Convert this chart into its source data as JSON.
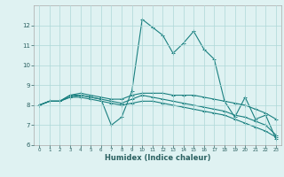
{
  "title": "",
  "xlabel": "Humidex (Indice chaleur)",
  "ylabel": "",
  "bg_color": "#dff2f2",
  "line_color": "#1a8080",
  "grid_color": "#aed8d8",
  "xlim": [
    -0.5,
    23.5
  ],
  "ylim": [
    6,
    13
  ],
  "yticks": [
    6,
    7,
    8,
    9,
    10,
    11,
    12
  ],
  "xticks": [
    0,
    1,
    2,
    3,
    4,
    5,
    6,
    7,
    8,
    9,
    10,
    11,
    12,
    13,
    14,
    15,
    16,
    17,
    18,
    19,
    20,
    21,
    22,
    23
  ],
  "lines": [
    {
      "x": [
        0,
        1,
        2,
        3,
        4,
        5,
        6,
        7,
        8,
        9,
        10,
        11,
        12,
        13,
        14,
        15,
        16,
        17,
        18,
        19,
        20,
        21,
        22,
        23
      ],
      "y": [
        8.0,
        8.2,
        8.2,
        8.5,
        8.5,
        8.4,
        8.3,
        7.0,
        7.4,
        8.7,
        12.3,
        11.9,
        11.5,
        10.6,
        11.1,
        11.7,
        10.8,
        10.3,
        8.2,
        7.4,
        8.4,
        7.3,
        7.5,
        6.3
      ]
    },
    {
      "x": [
        0,
        1,
        2,
        3,
        4,
        5,
        6,
        7,
        8,
        9,
        10,
        11,
        12,
        13,
        14,
        15,
        16,
        17,
        18,
        19,
        20,
        21,
        22,
        23
      ],
      "y": [
        8.0,
        8.2,
        8.2,
        8.5,
        8.6,
        8.5,
        8.4,
        8.3,
        8.3,
        8.5,
        8.6,
        8.6,
        8.6,
        8.5,
        8.5,
        8.5,
        8.4,
        8.3,
        8.2,
        8.1,
        8.0,
        7.8,
        7.6,
        7.3
      ]
    },
    {
      "x": [
        0,
        1,
        2,
        3,
        4,
        5,
        6,
        7,
        8,
        9,
        10,
        11,
        12,
        13,
        14,
        15,
        16,
        17,
        18,
        19,
        20,
        21,
        22,
        23
      ],
      "y": [
        8.0,
        8.2,
        8.2,
        8.4,
        8.5,
        8.4,
        8.3,
        8.2,
        8.1,
        8.3,
        8.5,
        8.4,
        8.3,
        8.2,
        8.1,
        8.0,
        7.9,
        7.8,
        7.7,
        7.5,
        7.4,
        7.2,
        7.0,
        6.5
      ]
    },
    {
      "x": [
        0,
        1,
        2,
        3,
        4,
        5,
        6,
        7,
        8,
        9,
        10,
        11,
        12,
        13,
        14,
        15,
        16,
        17,
        18,
        19,
        20,
        21,
        22,
        23
      ],
      "y": [
        8.0,
        8.2,
        8.2,
        8.4,
        8.4,
        8.3,
        8.2,
        8.1,
        8.0,
        8.1,
        8.2,
        8.2,
        8.1,
        8.0,
        7.9,
        7.8,
        7.7,
        7.6,
        7.5,
        7.3,
        7.1,
        6.9,
        6.7,
        6.4
      ]
    }
  ]
}
